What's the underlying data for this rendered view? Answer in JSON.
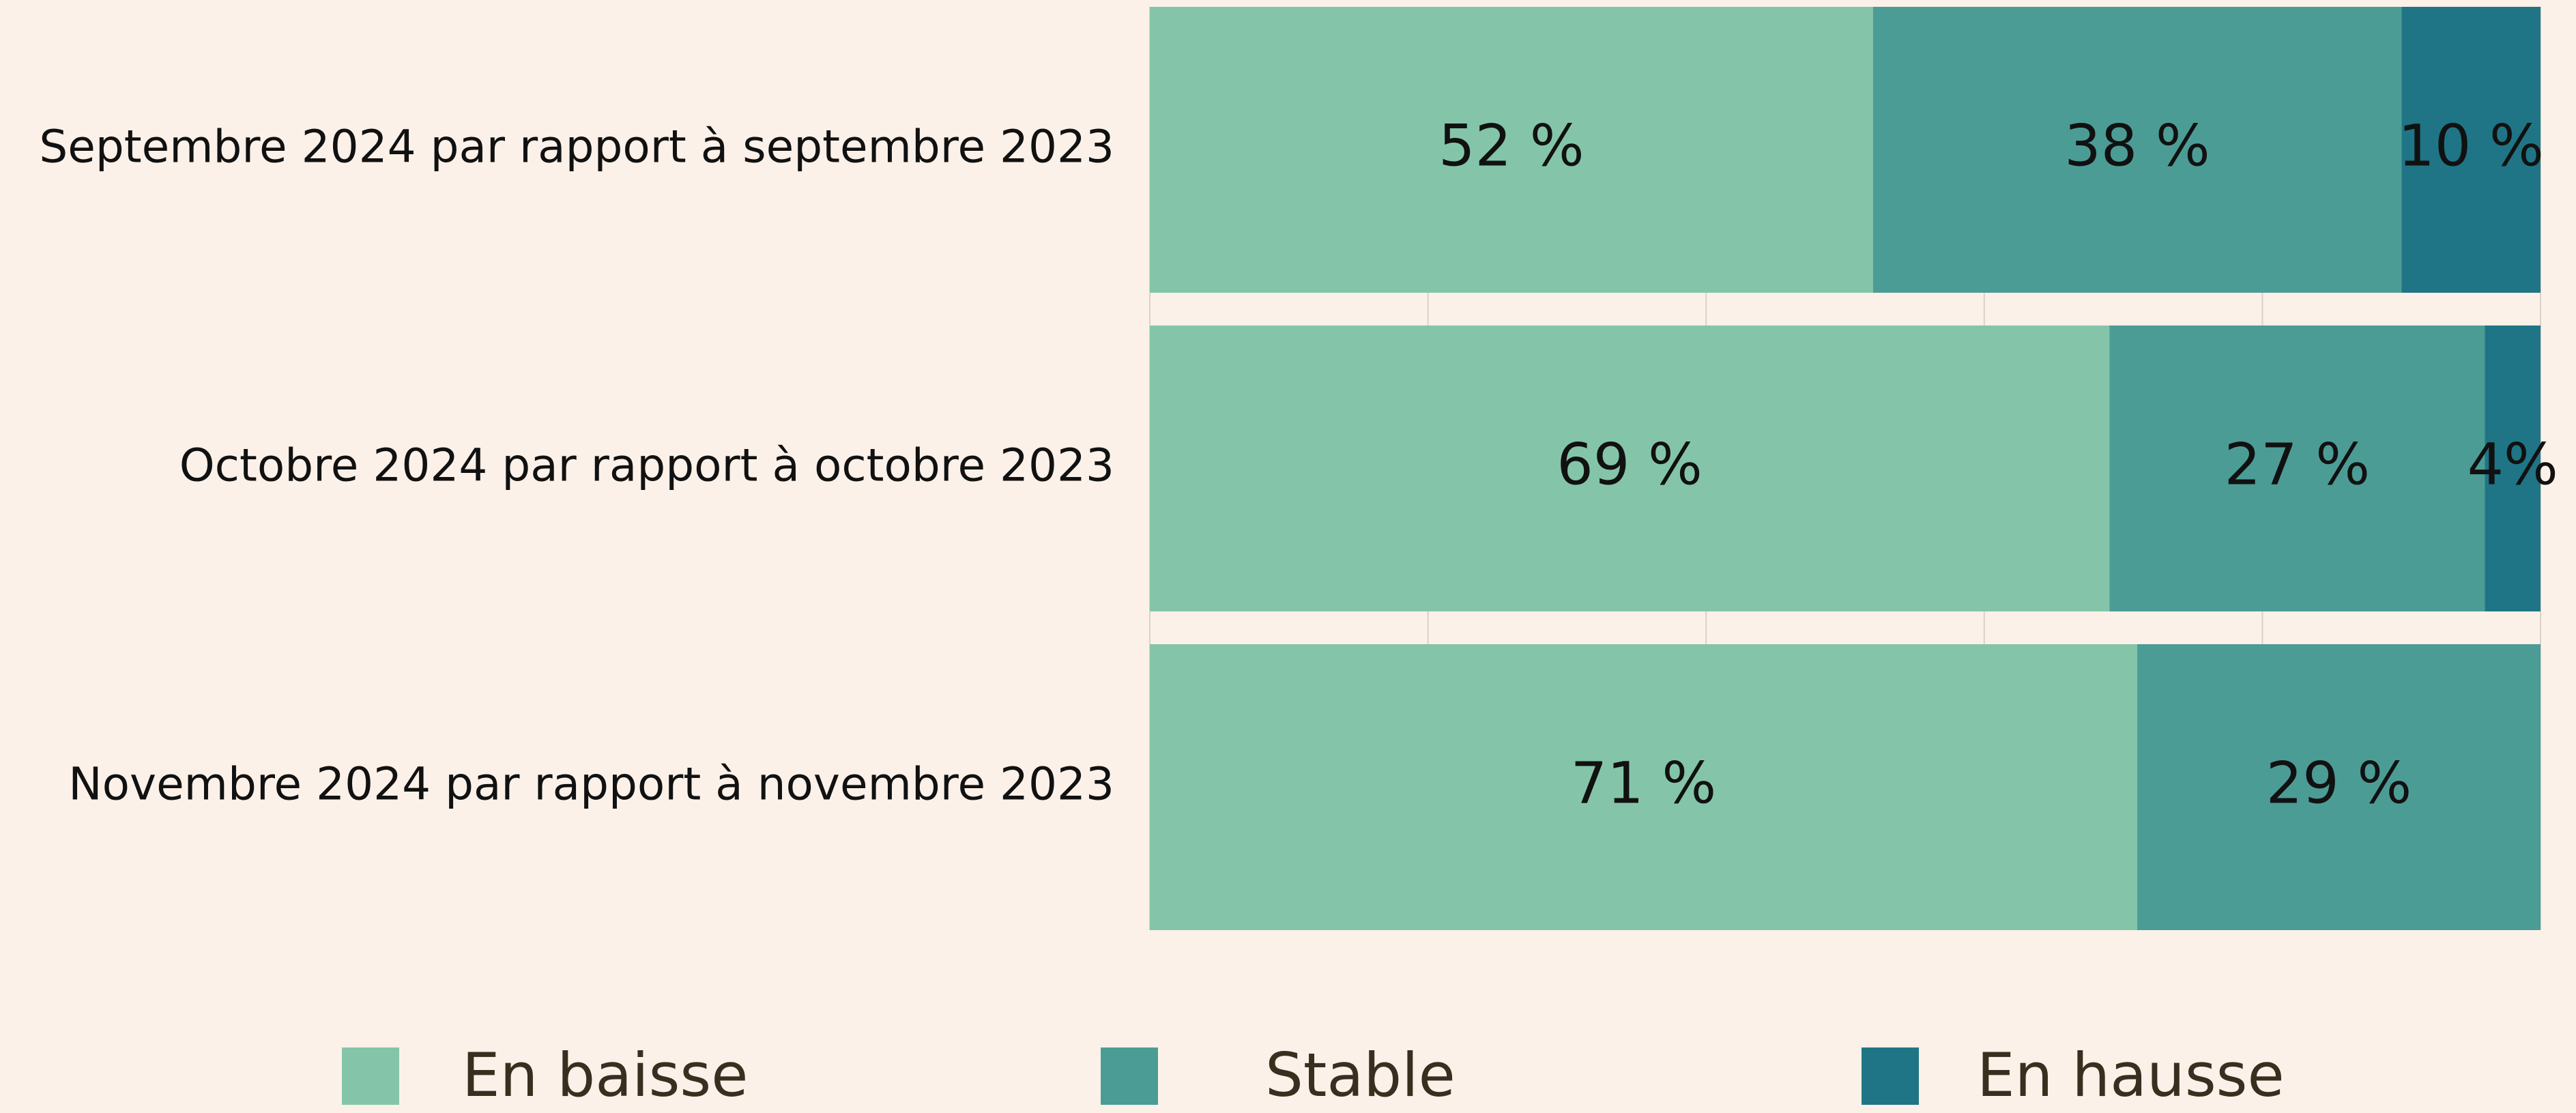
{
  "chart_data": {
    "type": "stacked-barh",
    "categories": [
      "Septembre 2024 par rapport à septembre 2023",
      "Octobre 2024 par rapport à octobre 2023",
      "Novembre 2024 par rapport à novembre 2023"
    ],
    "series": [
      {
        "name": "En baisse",
        "color": "#84c5a9",
        "values": [
          52,
          69,
          71
        ],
        "value_labels": [
          "52 %",
          "69 %",
          "71 %"
        ]
      },
      {
        "name": "Stable",
        "color": "#4c9c96",
        "values": [
          38,
          27,
          29
        ],
        "value_labels": [
          "38 %",
          "27 %",
          "29 %"
        ]
      },
      {
        "name": "En hausse",
        "color": "#1f7585",
        "values": [
          10,
          4,
          null
        ],
        "value_labels": [
          "10 %",
          "4%",
          null
        ]
      }
    ],
    "xlim": [
      0,
      100
    ],
    "xticks": [
      0,
      20,
      40,
      60,
      80,
      100
    ],
    "grid": true
  }
}
